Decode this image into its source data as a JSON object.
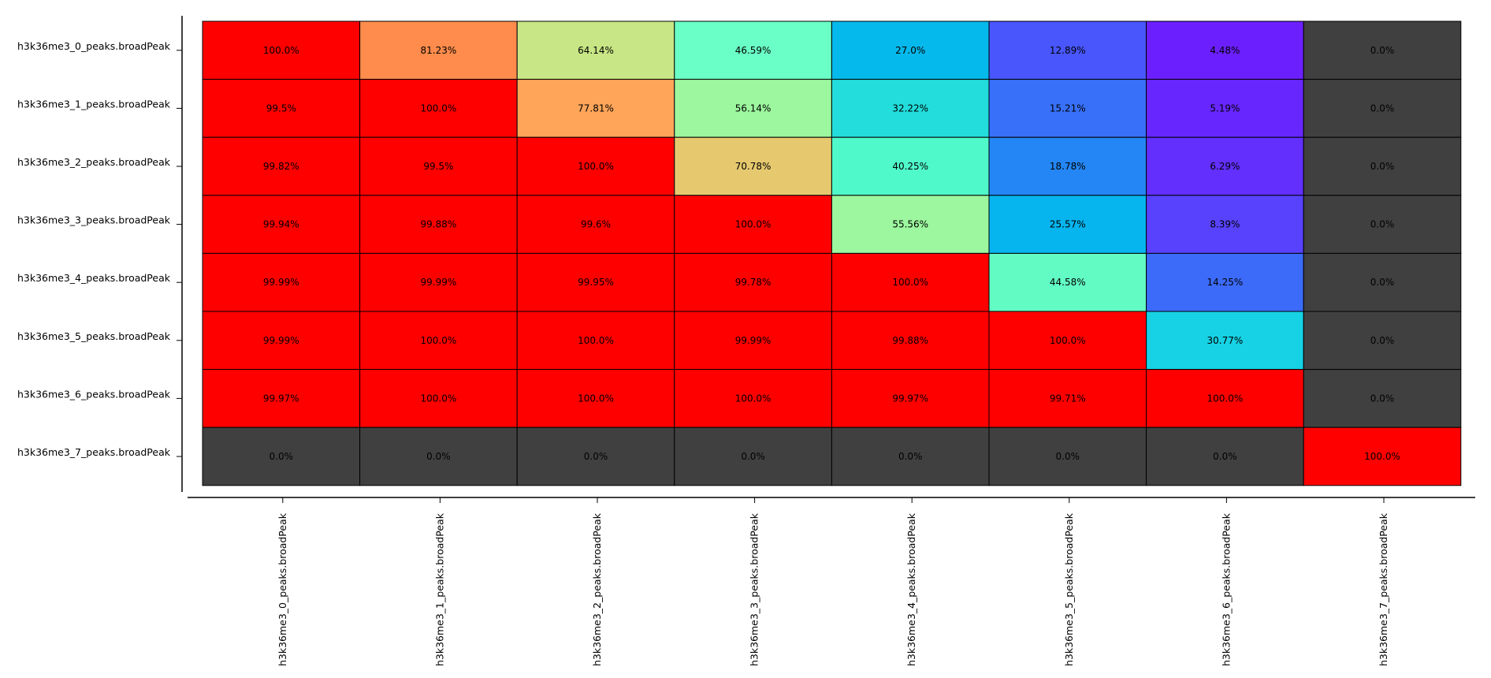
{
  "chart_data": {
    "type": "heatmap",
    "title": "",
    "xlabel": "",
    "ylabel": "",
    "rows": [
      "h3k36me3_0_peaks.broadPeak",
      "h3k36me3_1_peaks.broadPeak",
      "h3k36me3_2_peaks.broadPeak",
      "h3k36me3_3_peaks.broadPeak",
      "h3k36me3_4_peaks.broadPeak",
      "h3k36me3_5_peaks.broadPeak",
      "h3k36me3_6_peaks.broadPeak",
      "h3k36me3_7_peaks.broadPeak"
    ],
    "columns": [
      "h3k36me3_0_peaks.broadPeak",
      "h3k36me3_1_peaks.broadPeak",
      "h3k36me3_2_peaks.broadPeak",
      "h3k36me3_3_peaks.broadPeak",
      "h3k36me3_4_peaks.broadPeak",
      "h3k36me3_5_peaks.broadPeak",
      "h3k36me3_6_peaks.broadPeak",
      "h3k36me3_7_peaks.broadPeak"
    ],
    "values": [
      [
        100.0,
        81.23,
        64.14,
        46.59,
        27.0,
        12.89,
        4.48,
        0.0
      ],
      [
        99.5,
        100.0,
        77.81,
        56.14,
        32.22,
        15.21,
        5.19,
        0.0
      ],
      [
        99.82,
        99.5,
        100.0,
        70.78,
        40.25,
        18.78,
        6.29,
        0.0
      ],
      [
        99.94,
        99.88,
        99.6,
        100.0,
        55.56,
        25.57,
        8.39,
        0.0
      ],
      [
        99.99,
        99.99,
        99.95,
        99.78,
        100.0,
        44.58,
        14.25,
        0.0
      ],
      [
        99.99,
        100.0,
        100.0,
        99.99,
        99.88,
        100.0,
        30.77,
        0.0
      ],
      [
        99.97,
        100.0,
        100.0,
        100.0,
        99.97,
        99.71,
        100.0,
        0.0
      ],
      [
        0.0,
        0.0,
        0.0,
        0.0,
        0.0,
        0.0,
        0.0,
        100.0
      ]
    ],
    "cell_labels": [
      [
        "100.0%",
        "81.23%",
        "64.14%",
        "46.59%",
        "27.0%",
        "12.89%",
        "4.48%",
        "0.0%"
      ],
      [
        "99.5%",
        "100.0%",
        "77.81%",
        "56.14%",
        "32.22%",
        "15.21%",
        "5.19%",
        "0.0%"
      ],
      [
        "99.82%",
        "99.5%",
        "100.0%",
        "70.78%",
        "40.25%",
        "18.78%",
        "6.29%",
        "0.0%"
      ],
      [
        "99.94%",
        "99.88%",
        "99.6%",
        "100.0%",
        "55.56%",
        "25.57%",
        "8.39%",
        "0.0%"
      ],
      [
        "99.99%",
        "99.99%",
        "99.95%",
        "99.78%",
        "100.0%",
        "44.58%",
        "14.25%",
        "0.0%"
      ],
      [
        "99.99%",
        "100.0%",
        "100.0%",
        "99.99%",
        "99.88%",
        "100.0%",
        "30.77%",
        "0.0%"
      ],
      [
        "99.97%",
        "100.0%",
        "100.0%",
        "100.0%",
        "99.97%",
        "99.71%",
        "100.0%",
        "0.0%"
      ],
      [
        "0.0%",
        "0.0%",
        "0.0%",
        "0.0%",
        "0.0%",
        "0.0%",
        "0.0%",
        "100.0%"
      ]
    ],
    "cell_colors": [
      [
        "#ff0000",
        "#ff8c4c",
        "#c8e685",
        "#6affc6",
        "#06b9ec",
        "#4856fc",
        "#6c1ffe",
        "#404040"
      ],
      [
        "#ff0000",
        "#ff0000",
        "#ffa55a",
        "#9cf79e",
        "#22dddb",
        "#3870f9",
        "#6826fe",
        "#404040"
      ],
      [
        "#ff0000",
        "#ff0000",
        "#ff0000",
        "#e6c96f",
        "#4ff9ca",
        "#2486f4",
        "#622ffd",
        "#404040"
      ],
      [
        "#ff0000",
        "#ff0000",
        "#ff0000",
        "#ff0000",
        "#9cf79e",
        "#06b4ee",
        "#5842fd",
        "#404040"
      ],
      [
        "#ff0000",
        "#ff0000",
        "#ff0000",
        "#ff0000",
        "#ff0000",
        "#62fbc4",
        "#3c6bf9",
        "#404040"
      ],
      [
        "#ff0000",
        "#ff0000",
        "#ff0000",
        "#ff0000",
        "#ff0000",
        "#ff0000",
        "#16d2e4",
        "#404040"
      ],
      [
        "#ff0000",
        "#ff0000",
        "#ff0000",
        "#ff0000",
        "#ff0000",
        "#ff0000",
        "#ff0000",
        "#404040"
      ],
      [
        "#404040",
        "#404040",
        "#404040",
        "#404040",
        "#404040",
        "#404040",
        "#404040",
        "#ff0000"
      ]
    ],
    "zero_color": "#404040",
    "grid": true,
    "legend": "none"
  }
}
